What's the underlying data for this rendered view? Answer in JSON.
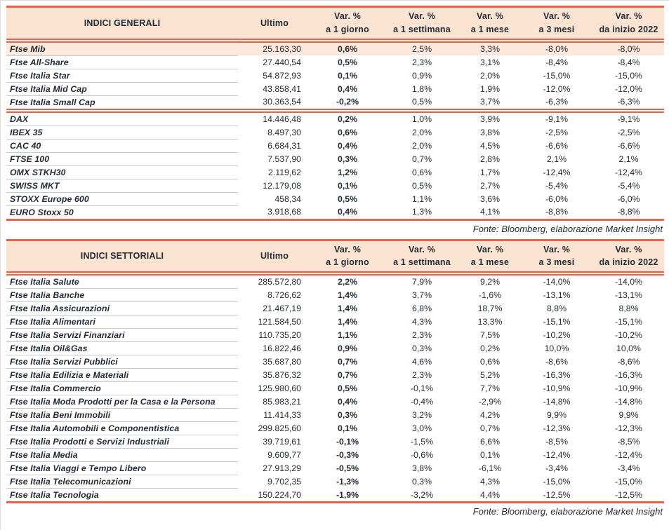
{
  "colors": {
    "accent_line": "#EC614A",
    "header_background": "#FBE3D2",
    "highlight_row_background": "#FCE9DC",
    "text": "#232B36",
    "row_separator": "#C9C9C9"
  },
  "tables": [
    {
      "title": "INDICI GENERALI",
      "headers": {
        "ultimo": "Ultimo",
        "var_cols": [
          {
            "top": "Var. %",
            "bottom": "a 1 giorno"
          },
          {
            "top": "Var. %",
            "bottom": "a 1 settimana"
          },
          {
            "top": "Var. %",
            "bottom": "a 1 mese"
          },
          {
            "top": "Var. %",
            "bottom": "a 3 mesi"
          },
          {
            "top": "Var. %",
            "bottom": "da inizio 2022"
          }
        ]
      },
      "groups": [
        [
          {
            "name": "Ftse Mib",
            "ultimo": "25.163,30",
            "var": [
              "0,6%",
              "2,5%",
              "3,3%",
              "-8,0%",
              "-8,0%"
            ],
            "highlight": true
          },
          {
            "name": "Ftse All-Share",
            "ultimo": "27.440,54",
            "var": [
              "0,5%",
              "2,3%",
              "3,1%",
              "-8,4%",
              "-8,4%"
            ]
          },
          {
            "name": "Ftse Italia Star",
            "ultimo": "54.872,93",
            "var": [
              "0,1%",
              "0,9%",
              "2,0%",
              "-15,0%",
              "-15,0%"
            ]
          },
          {
            "name": "Ftse Italia Mid Cap",
            "ultimo": "43.858,41",
            "var": [
              "0,4%",
              "1,8%",
              "1,9%",
              "-12,0%",
              "-12,0%"
            ]
          },
          {
            "name": "Ftse Italia Small Cap",
            "ultimo": "30.363,54",
            "var": [
              "-0,2%",
              "0,5%",
              "3,7%",
              "-6,3%",
              "-6,3%"
            ]
          }
        ],
        [
          {
            "name": "DAX",
            "ultimo": "14.446,48",
            "var": [
              "0,2%",
              "1,0%",
              "3,9%",
              "-9,1%",
              "-9,1%"
            ]
          },
          {
            "name": "IBEX 35",
            "ultimo": "8.497,30",
            "var": [
              "0,6%",
              "2,0%",
              "3,8%",
              "-2,5%",
              "-2,5%"
            ]
          },
          {
            "name": "CAC 40",
            "ultimo": "6.684,31",
            "var": [
              "0,4%",
              "2,0%",
              "4,5%",
              "-6,6%",
              "-6,6%"
            ]
          },
          {
            "name": "FTSE 100",
            "ultimo": "7.537,90",
            "var": [
              "0,3%",
              "0,7%",
              "2,8%",
              "2,1%",
              "2,1%"
            ]
          },
          {
            "name": "OMX STKH30",
            "ultimo": "2.119,62",
            "var": [
              "1,2%",
              "0,6%",
              "1,7%",
              "-12,4%",
              "-12,4%"
            ]
          },
          {
            "name": "SWISS MKT",
            "ultimo": "12.179,08",
            "var": [
              "0,1%",
              "0,5%",
              "2,7%",
              "-5,4%",
              "-5,4%"
            ]
          },
          {
            "name": "STOXX Europe 600",
            "ultimo": "458,34",
            "var": [
              "0,5%",
              "1,1%",
              "3,6%",
              "-6,0%",
              "-6,0%"
            ]
          },
          {
            "name": "EURO Stoxx 50",
            "ultimo": "3.918,68",
            "var": [
              "0,4%",
              "1,3%",
              "4,1%",
              "-8,8%",
              "-8,8%"
            ]
          }
        ]
      ],
      "source": "Fonte: Bloomberg, elaborazione Market Insight"
    },
    {
      "title": "INDICI SETTORIALI",
      "headers": {
        "ultimo": "Ultimo",
        "var_cols": [
          {
            "top": "Var. %",
            "bottom": "a 1 giorno"
          },
          {
            "top": "Var. %",
            "bottom": "a 1 settimana"
          },
          {
            "top": "Var. %",
            "bottom": "a 1 mese"
          },
          {
            "top": "Var. %",
            "bottom": "a 3 mesi"
          },
          {
            "top": "Var. %",
            "bottom": "da inizio 2022"
          }
        ]
      },
      "groups": [
        [
          {
            "name": "Ftse Italia Salute",
            "ultimo": "285.572,80",
            "var": [
              "2,2%",
              "7,9%",
              "9,2%",
              "-14,0%",
              "-14,0%"
            ]
          },
          {
            "name": "Ftse Italia Banche",
            "ultimo": "8.726,62",
            "var": [
              "1,4%",
              "3,7%",
              "-1,6%",
              "-13,1%",
              "-13,1%"
            ]
          },
          {
            "name": "Ftse Italia Assicurazioni",
            "ultimo": "21.467,19",
            "var": [
              "1,4%",
              "6,8%",
              "18,7%",
              "8,8%",
              "8,8%"
            ]
          },
          {
            "name": "Ftse Italia Alimentari",
            "ultimo": "121.584,50",
            "var": [
              "1,4%",
              "4,3%",
              "13,3%",
              "-15,1%",
              "-15,1%"
            ]
          },
          {
            "name": "Ftse Italia Servizi Finanziari",
            "ultimo": "110.735,20",
            "var": [
              "1,1%",
              "2,3%",
              "7,5%",
              "-10,2%",
              "-10,2%"
            ]
          },
          {
            "name": "Ftse Italia Oil&Gas",
            "ultimo": "16.822,46",
            "var": [
              "0,9%",
              "0,3%",
              "0,2%",
              "10,0%",
              "10,0%"
            ]
          },
          {
            "name": "Ftse Italia Servizi Pubblici",
            "ultimo": "35.687,80",
            "var": [
              "0,7%",
              "4,6%",
              "0,6%",
              "-8,6%",
              "-8,6%"
            ]
          },
          {
            "name": "Ftse Italia Edilizia e Materiali",
            "ultimo": "35.876,32",
            "var": [
              "0,7%",
              "2,3%",
              "5,2%",
              "-16,3%",
              "-16,3%"
            ]
          },
          {
            "name": "Ftse Italia Commercio",
            "ultimo": "125.980,60",
            "var": [
              "0,5%",
              "-0,1%",
              "7,7%",
              "-10,9%",
              "-10,9%"
            ]
          },
          {
            "name": "Ftse Italia Moda Prodotti per la Casa e la Persona",
            "ultimo": "85.983,21",
            "var": [
              "0,4%",
              "-0,4%",
              "-2,9%",
              "-14,8%",
              "-14,8%"
            ]
          },
          {
            "name": "Ftse Italia Beni Immobili",
            "ultimo": "11.414,33",
            "var": [
              "0,3%",
              "3,2%",
              "4,2%",
              "9,9%",
              "9,9%"
            ]
          },
          {
            "name": "Ftse Italia Automobili e Componentistica",
            "ultimo": "299.825,60",
            "var": [
              "0,1%",
              "3,0%",
              "0,7%",
              "-12,3%",
              "-12,3%"
            ]
          },
          {
            "name": "Ftse Italia Prodotti e Servizi Industriali",
            "ultimo": "39.719,61",
            "var": [
              "-0,1%",
              "-1,5%",
              "6,6%",
              "-8,5%",
              "-8,5%"
            ]
          },
          {
            "name": "Ftse Italia Media",
            "ultimo": "9.609,77",
            "var": [
              "-0,3%",
              "-0,6%",
              "0,1%",
              "-12,4%",
              "-12,4%"
            ]
          },
          {
            "name": "Ftse Italia Viaggi e Tempo Libero",
            "ultimo": "27.913,29",
            "var": [
              "-0,5%",
              "3,8%",
              "-6,1%",
              "-3,4%",
              "-3,4%"
            ]
          },
          {
            "name": "Ftse Italia Telecomunicazioni",
            "ultimo": "9.702,35",
            "var": [
              "-1,3%",
              "0,3%",
              "4,3%",
              "-15,0%",
              "-15,0%"
            ]
          },
          {
            "name": "Ftse Italia Tecnologia",
            "ultimo": "150.224,70",
            "var": [
              "-1,9%",
              "-3,2%",
              "4,4%",
              "-12,5%",
              "-12,5%"
            ]
          }
        ]
      ],
      "source": "Fonte: Bloomberg, elaborazione Market Insight"
    }
  ]
}
